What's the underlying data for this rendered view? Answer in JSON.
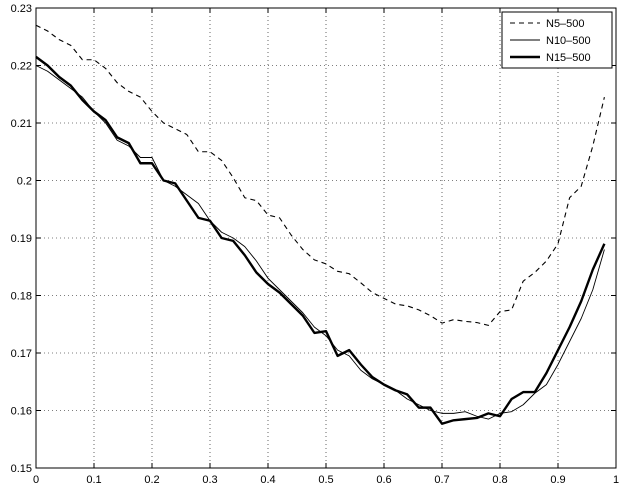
{
  "chart_data": {
    "type": "line",
    "title": "",
    "xlabel": "",
    "ylabel": "",
    "xlim": [
      0,
      1
    ],
    "ylim": [
      0.15,
      0.23
    ],
    "xticks": [
      "0",
      "0.1",
      "0.2",
      "0.3",
      "0.4",
      "0.5",
      "0.6",
      "0.7",
      "0.8",
      "0.9",
      "1"
    ],
    "yticks": [
      "0.15",
      "0.16",
      "0.17",
      "0.18",
      "0.19",
      "0.2",
      "0.21",
      "0.22",
      "0.23"
    ],
    "grid": true,
    "legend_position": "top-right",
    "series": [
      {
        "name": "N5–500",
        "style": "dashed",
        "color": "#000000",
        "x": [
          0,
          0.02,
          0.04,
          0.06,
          0.08,
          0.1,
          0.12,
          0.14,
          0.16,
          0.18,
          0.2,
          0.22,
          0.24,
          0.26,
          0.28,
          0.3,
          0.32,
          0.34,
          0.36,
          0.38,
          0.4,
          0.42,
          0.44,
          0.46,
          0.48,
          0.5,
          0.52,
          0.54,
          0.56,
          0.58,
          0.6,
          0.62,
          0.64,
          0.66,
          0.68,
          0.7,
          0.72,
          0.74,
          0.76,
          0.78,
          0.8,
          0.82,
          0.84,
          0.86,
          0.88,
          0.9,
          0.92,
          0.94,
          0.96,
          0.98
        ],
        "y": [
          0.227,
          0.226,
          0.2245,
          0.2235,
          0.221,
          0.221,
          0.2195,
          0.217,
          0.2155,
          0.2145,
          0.212,
          0.21,
          0.209,
          0.208,
          0.205,
          0.205,
          0.2035,
          0.2005,
          0.197,
          0.1965,
          0.194,
          0.1935,
          0.1905,
          0.188,
          0.1862,
          0.1855,
          0.1842,
          0.1838,
          0.1822,
          0.1805,
          0.1795,
          0.1785,
          0.1782,
          0.1775,
          0.1765,
          0.1752,
          0.1758,
          0.1755,
          0.1753,
          0.1748,
          0.1772,
          0.1775,
          0.1825,
          0.184,
          0.186,
          0.189,
          0.197,
          0.199,
          0.206,
          0.2145
        ]
      },
      {
        "name": "N10–500",
        "style": "thin",
        "color": "#000000",
        "x": [
          0,
          0.02,
          0.04,
          0.06,
          0.08,
          0.1,
          0.12,
          0.14,
          0.16,
          0.18,
          0.2,
          0.22,
          0.24,
          0.26,
          0.28,
          0.3,
          0.32,
          0.34,
          0.36,
          0.38,
          0.4,
          0.42,
          0.44,
          0.46,
          0.48,
          0.5,
          0.52,
          0.54,
          0.56,
          0.58,
          0.6,
          0.62,
          0.64,
          0.66,
          0.68,
          0.7,
          0.72,
          0.74,
          0.76,
          0.78,
          0.8,
          0.82,
          0.84,
          0.86,
          0.88,
          0.9,
          0.92,
          0.94,
          0.96,
          0.98
        ],
        "y": [
          0.22,
          0.219,
          0.2175,
          0.216,
          0.2145,
          0.212,
          0.21,
          0.207,
          0.206,
          0.204,
          0.204,
          0.2,
          0.199,
          0.1975,
          0.196,
          0.193,
          0.191,
          0.19,
          0.1885,
          0.186,
          0.183,
          0.181,
          0.179,
          0.177,
          0.1745,
          0.173,
          0.1705,
          0.1695,
          0.167,
          0.1655,
          0.1645,
          0.1635,
          0.162,
          0.161,
          0.16,
          0.1595,
          0.1595,
          0.1598,
          0.159,
          0.1585,
          0.1595,
          0.1598,
          0.161,
          0.163,
          0.1645,
          0.168,
          0.172,
          0.176,
          0.181,
          0.188
        ]
      },
      {
        "name": "N15–500",
        "style": "thick",
        "color": "#000000",
        "x": [
          0,
          0.02,
          0.04,
          0.06,
          0.08,
          0.1,
          0.12,
          0.14,
          0.16,
          0.18,
          0.2,
          0.22,
          0.24,
          0.26,
          0.28,
          0.3,
          0.32,
          0.34,
          0.36,
          0.38,
          0.4,
          0.42,
          0.44,
          0.46,
          0.48,
          0.5,
          0.52,
          0.54,
          0.56,
          0.58,
          0.6,
          0.62,
          0.64,
          0.66,
          0.68,
          0.7,
          0.72,
          0.74,
          0.76,
          0.78,
          0.8,
          0.82,
          0.84,
          0.86,
          0.88,
          0.9,
          0.92,
          0.94,
          0.96,
          0.98
        ],
        "y": [
          0.2215,
          0.22,
          0.218,
          0.2165,
          0.214,
          0.212,
          0.2105,
          0.2075,
          0.2065,
          0.203,
          0.203,
          0.2,
          0.1995,
          0.1965,
          0.1935,
          0.193,
          0.19,
          0.1895,
          0.187,
          0.184,
          0.182,
          0.1805,
          0.1785,
          0.1765,
          0.1735,
          0.1738,
          0.1695,
          0.1705,
          0.168,
          0.1658,
          0.1645,
          0.1635,
          0.1628,
          0.1605,
          0.1605,
          0.1577,
          0.1583,
          0.1585,
          0.1587,
          0.1595,
          0.159,
          0.162,
          0.1632,
          0.1632,
          0.1665,
          0.1705,
          0.1745,
          0.179,
          0.1845,
          0.189
        ]
      }
    ]
  }
}
